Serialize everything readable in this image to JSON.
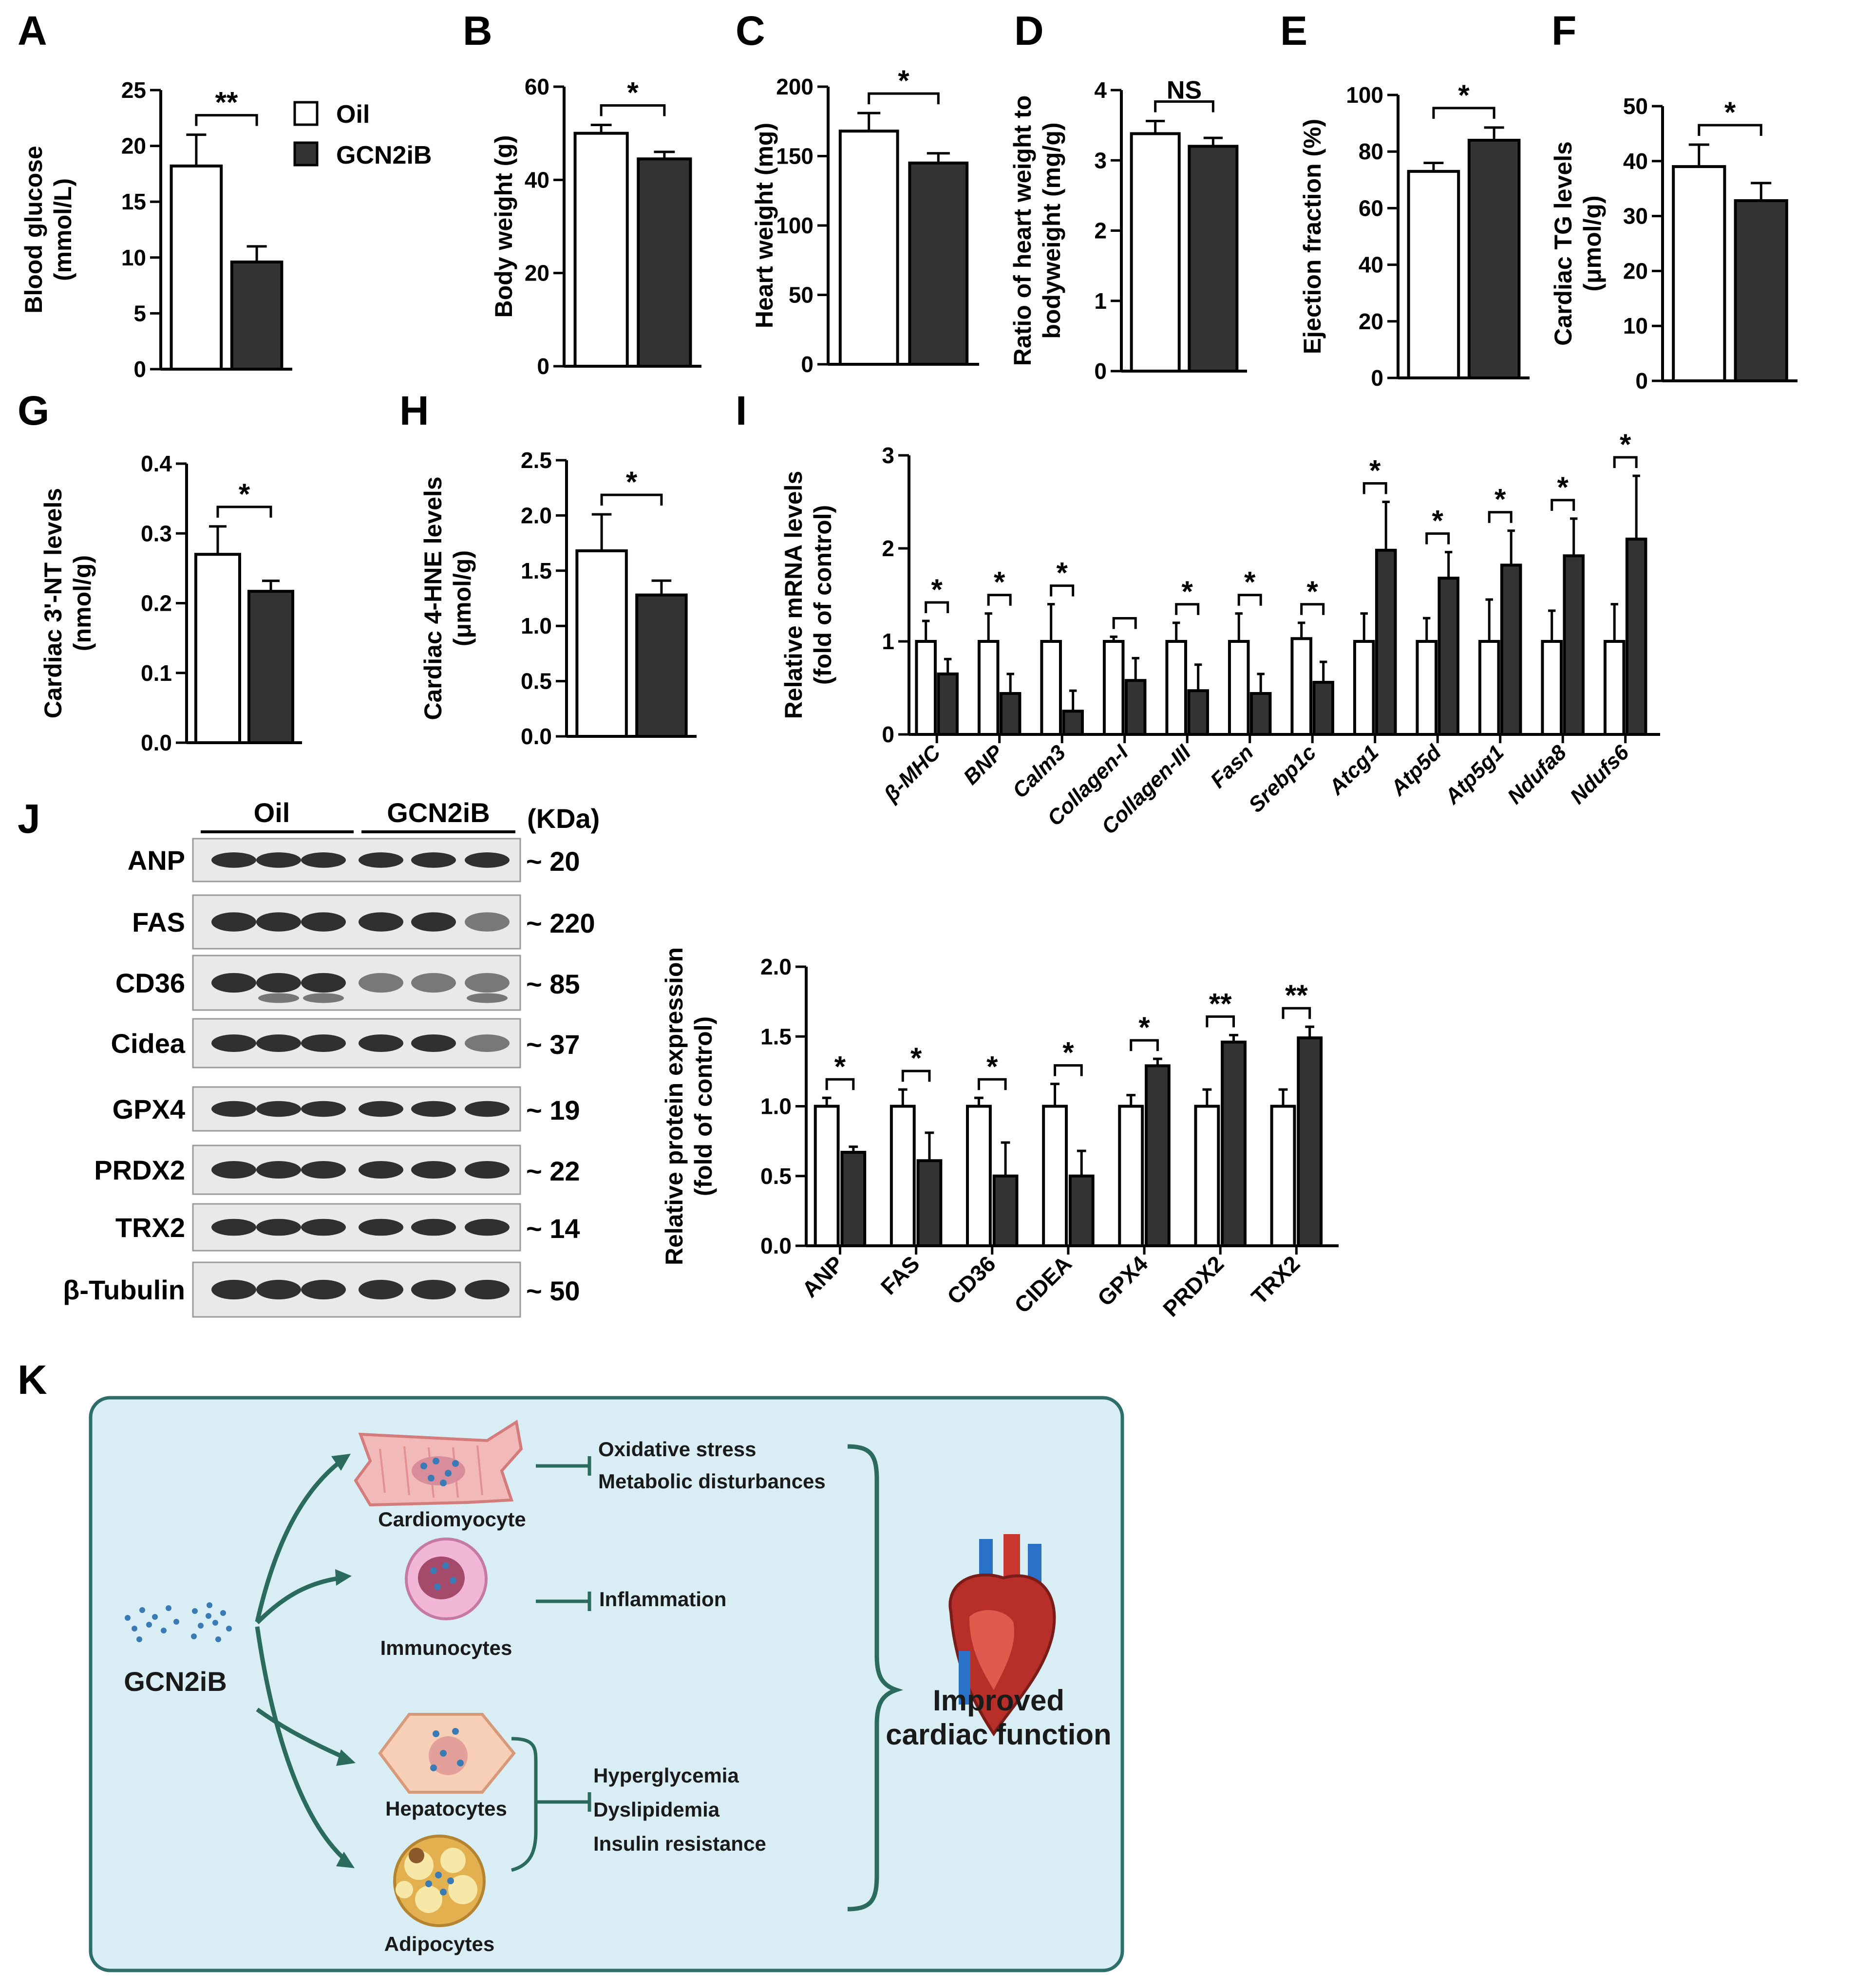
{
  "legend": {
    "oil": "Oil",
    "gcn": "GCN2iB"
  },
  "colors": {
    "oil_fill": "#ffffff",
    "gcn_fill": "#333333",
    "axis": "#000000",
    "diagram_bg": "#d9eef4",
    "diagram_border": "#2e6e6a",
    "arrow": "#2a6b5e"
  },
  "chart_data": [
    {
      "id": "A",
      "letter": "A",
      "type": "bar",
      "ylabel_lines": [
        "Blood glucose",
        "(mmol/L)"
      ],
      "yticks": [
        0,
        5,
        10,
        15,
        20,
        25
      ],
      "ylim": [
        0,
        25
      ],
      "series": [
        {
          "name": "Oil",
          "values": [
            18.2
          ],
          "errors": [
            2.8
          ]
        },
        {
          "name": "GCN2iB",
          "values": [
            9.6
          ],
          "errors": [
            1.4
          ]
        }
      ],
      "sig": "**"
    },
    {
      "id": "B",
      "letter": "B",
      "type": "bar",
      "ylabel_lines": [
        "Body weight (g)"
      ],
      "yticks": [
        0,
        20,
        40,
        60
      ],
      "ylim": [
        0,
        60
      ],
      "series": [
        {
          "name": "Oil",
          "values": [
            50
          ],
          "errors": [
            1.8
          ]
        },
        {
          "name": "GCN2iB",
          "values": [
            44.5
          ],
          "errors": [
            1.5
          ]
        }
      ],
      "sig": "*"
    },
    {
      "id": "C",
      "letter": "C",
      "type": "bar",
      "ylabel_lines": [
        "Heart weight (mg)"
      ],
      "yticks": [
        0,
        50,
        100,
        150,
        200
      ],
      "ylim": [
        0,
        200
      ],
      "series": [
        {
          "name": "Oil",
          "values": [
            168
          ],
          "errors": [
            13
          ]
        },
        {
          "name": "GCN2iB",
          "values": [
            145
          ],
          "errors": [
            7
          ]
        }
      ],
      "sig": "*"
    },
    {
      "id": "D",
      "letter": "D",
      "type": "bar",
      "ylabel_lines": [
        "Ratio of heart weight to",
        "bodyweight (mg/g)"
      ],
      "yticks": [
        0,
        1,
        2,
        3,
        4
      ],
      "ylim": [
        0,
        4
      ],
      "series": [
        {
          "name": "Oil",
          "values": [
            3.38
          ],
          "errors": [
            0.18
          ]
        },
        {
          "name": "GCN2iB",
          "values": [
            3.2
          ],
          "errors": [
            0.12
          ]
        }
      ],
      "sig": "NS"
    },
    {
      "id": "E",
      "letter": "E",
      "type": "bar",
      "ylabel_lines": [
        "Ejection fraction (%)"
      ],
      "yticks": [
        0,
        20,
        40,
        60,
        80,
        100
      ],
      "ylim": [
        0,
        100
      ],
      "series": [
        {
          "name": "Oil",
          "values": [
            73
          ],
          "errors": [
            3
          ]
        },
        {
          "name": "GCN2iB",
          "values": [
            84
          ],
          "errors": [
            4.5
          ]
        }
      ],
      "sig": "*"
    },
    {
      "id": "F",
      "letter": "F",
      "type": "bar",
      "ylabel_lines": [
        "Cardiac TG levels",
        "(μmol/g)"
      ],
      "yticks": [
        0,
        10,
        20,
        30,
        40,
        50
      ],
      "ylim": [
        0,
        50
      ],
      "series": [
        {
          "name": "Oil",
          "values": [
            39
          ],
          "errors": [
            4
          ]
        },
        {
          "name": "GCN2iB",
          "values": [
            32.8
          ],
          "errors": [
            3.2
          ]
        }
      ],
      "sig": "*"
    },
    {
      "id": "G",
      "letter": "G",
      "type": "bar",
      "ylabel_lines": [
        "Cardiac 3'-NT levels",
        "(nmol/g)"
      ],
      "yticks": [
        "0.0",
        "0.1",
        "0.2",
        "0.3",
        "0.4"
      ],
      "ylim": [
        0,
        0.4
      ],
      "series": [
        {
          "name": "Oil",
          "values": [
            0.27
          ],
          "errors": [
            0.04
          ]
        },
        {
          "name": "GCN2iB",
          "values": [
            0.217
          ],
          "errors": [
            0.015
          ]
        }
      ],
      "sig": "*"
    },
    {
      "id": "H",
      "letter": "H",
      "type": "bar",
      "ylabel_lines": [
        "Cardiac 4-HNE levels",
        "(μmol/g)"
      ],
      "yticks": [
        "0.0",
        "0.5",
        "1.0",
        "1.5",
        "2.0",
        "2.5"
      ],
      "ylim": [
        0,
        2.5
      ],
      "series": [
        {
          "name": "Oil",
          "values": [
            1.68
          ],
          "errors": [
            0.33
          ]
        },
        {
          "name": "GCN2iB",
          "values": [
            1.28
          ],
          "errors": [
            0.13
          ]
        }
      ],
      "sig": "*"
    },
    {
      "id": "I",
      "letter": "I",
      "type": "bar",
      "ylabel_lines": [
        "Relative mRNA levels",
        "(fold of control)"
      ],
      "yticks": [
        0,
        1,
        2,
        3
      ],
      "ylim": [
        0,
        3
      ],
      "categories": [
        "β-MHC",
        "BNP",
        "Calm3",
        "Collagen-I",
        "Collagen-III",
        "Fasn",
        "Srebp1c",
        "Atcg1",
        "Atp5d",
        "Atp5g1",
        "Ndufa8",
        "Ndufs6"
      ],
      "series": [
        {
          "name": "Oil",
          "values": [
            1,
            1,
            1,
            1,
            1,
            1,
            1.03,
            1,
            1,
            1,
            1,
            1
          ],
          "errors": [
            0.22,
            0.3,
            0.4,
            0.05,
            0.2,
            0.3,
            0.17,
            0.3,
            0.25,
            0.45,
            0.33,
            0.4
          ]
        },
        {
          "name": "GCN2iB",
          "values": [
            0.65,
            0.44,
            0.25,
            0.58,
            0.47,
            0.44,
            0.56,
            1.98,
            1.68,
            1.82,
            1.92,
            2.1
          ],
          "errors": [
            0.16,
            0.21,
            0.22,
            0.24,
            0.28,
            0.21,
            0.22,
            0.52,
            0.28,
            0.37,
            0.4,
            0.68
          ]
        }
      ],
      "sigs": [
        "*",
        "*",
        "*",
        "",
        "*",
        "*",
        "*",
        "*",
        "*",
        "*",
        "*",
        "*"
      ]
    },
    {
      "id": "J",
      "letter": "J",
      "type": "bar",
      "ylabel_lines": [
        "Relative protein expression",
        "(fold of control)"
      ],
      "yticks": [
        "0.0",
        "0.5",
        "1.0",
        "1.5",
        "2.0"
      ],
      "ylim": [
        0,
        2
      ],
      "categories": [
        "ANP",
        "FAS",
        "CD36",
        "CIDEA",
        "GPX4",
        "PRDX2",
        "TRX2"
      ],
      "series": [
        {
          "name": "Oil",
          "values": [
            1,
            1,
            1,
            1,
            1,
            1,
            1
          ],
          "errors": [
            0.06,
            0.12,
            0.06,
            0.16,
            0.08,
            0.12,
            0.12
          ]
        },
        {
          "name": "GCN2iB",
          "values": [
            0.67,
            0.61,
            0.5,
            0.5,
            1.29,
            1.46,
            1.49
          ],
          "errors": [
            0.04,
            0.2,
            0.24,
            0.18,
            0.05,
            0.05,
            0.08
          ]
        }
      ],
      "sigs": [
        "*",
        "*",
        "*",
        "*",
        "*",
        "**",
        "**"
      ]
    }
  ],
  "blot": {
    "letter": "J",
    "group_oil": "Oil",
    "group_gcn": "GCN2iB",
    "kda_header": "(KDa)",
    "rows": [
      {
        "name": "ANP",
        "kda": "~ 20"
      },
      {
        "name": "FAS",
        "kda": "~ 220"
      },
      {
        "name": "CD36",
        "kda": "~ 85"
      },
      {
        "name": "Cidea",
        "kda": "~ 37"
      },
      {
        "name": "GPX4",
        "kda": "~ 19"
      },
      {
        "name": "PRDX2",
        "kda": "~ 22"
      },
      {
        "name": "TRX2",
        "kda": "~ 14"
      },
      {
        "name": "β-Tubulin",
        "kda": "~ 50"
      }
    ]
  },
  "diagram": {
    "letter": "K",
    "drug": "GCN2iB",
    "cells": {
      "cardio": "Cardiomyocyte",
      "immuno": "Immunocytes",
      "hepato": "Hepatocytes",
      "adipo": "Adipocytes"
    },
    "effects": {
      "oxidative": "Oxidative stress",
      "metabolic": "Metabolic disturbances",
      "inflammation": "Inflammation",
      "hyperglycemia": "Hyperglycemia",
      "dyslipidemia": "Dyslipidemia",
      "insulin": "Insulin resistance"
    },
    "result_line1": "Improved",
    "result_line2": "cardiac function"
  }
}
